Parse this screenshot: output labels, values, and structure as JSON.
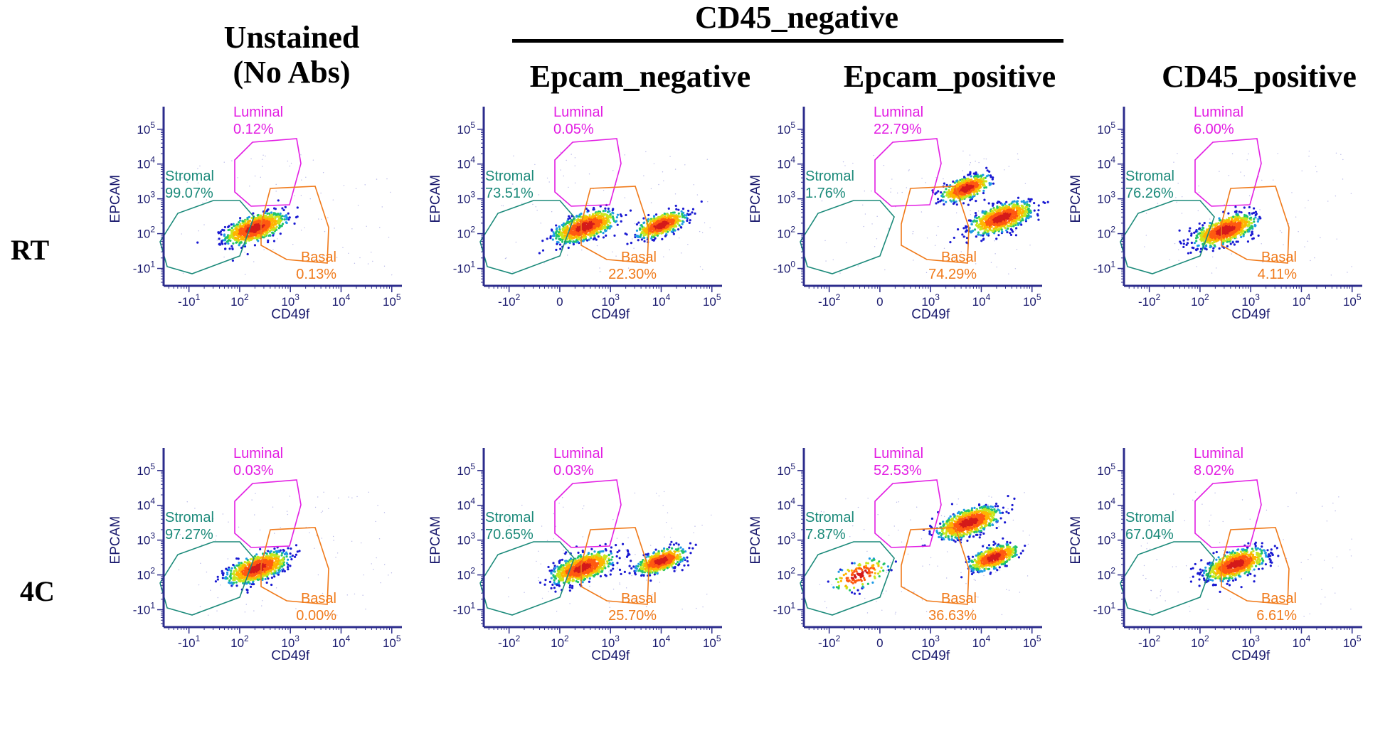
{
  "headers": {
    "unstained": [
      "Unstained",
      "(No Abs)"
    ],
    "group": "CD45_negative",
    "epcam_negative": "Epcam_negative",
    "epcam_positive": "Epcam_positive",
    "cd45_positive": "CD45_positive"
  },
  "rows": [
    "RT",
    "4C"
  ],
  "colors": {
    "stromal": "#1b8a7a",
    "luminal": "#e31ee3",
    "basal": "#f07a1a",
    "axis": "#2c2c8c"
  },
  "chart_data": [
    {
      "type": "scatter",
      "row": "RT",
      "column": "Unstained (No Abs)",
      "xlabel": "CD49f",
      "ylabel": "EPCAM",
      "xticks": [
        "-10^1",
        "10^2",
        "10^3",
        "10^4",
        "10^5"
      ],
      "yticks": [
        "10^5",
        "10^4",
        "10^3",
        "10^2",
        "-10^1"
      ],
      "gates": [
        {
          "name": "Luminal",
          "pct": "0.12%"
        },
        {
          "name": "Stromal",
          "pct": "99.07%"
        },
        {
          "name": "Basal",
          "pct": "0.13%"
        }
      ],
      "clusters": [
        {
          "x": 2.3,
          "y": 2.15,
          "density": "high"
        }
      ]
    },
    {
      "type": "scatter",
      "row": "RT",
      "column": "Epcam_negative",
      "xlabel": "CD49f",
      "ylabel": "EPCAM",
      "xticks": [
        "-10^2",
        "0",
        "10^3",
        "10^4",
        "10^5"
      ],
      "yticks": [
        "10^5",
        "10^4",
        "10^3",
        "10^2",
        "-10^1"
      ],
      "gates": [
        {
          "name": "Luminal",
          "pct": "0.05%"
        },
        {
          "name": "Stromal",
          "pct": "73.51%"
        },
        {
          "name": "Basal",
          "pct": "22.30%"
        }
      ],
      "clusters": [
        {
          "x": 2.5,
          "y": 2.2,
          "density": "high"
        },
        {
          "x": 4.0,
          "y": 2.25,
          "density": "medium"
        }
      ]
    },
    {
      "type": "scatter",
      "row": "RT",
      "column": "Epcam_positive",
      "xlabel": "CD49f",
      "ylabel": "EPCAM",
      "xticks": [
        "-10^2",
        "0",
        "10^3",
        "10^4",
        "10^5"
      ],
      "yticks": [
        "10^5",
        "10^4",
        "10^3",
        "10^2",
        "-10^0"
      ],
      "gates": [
        {
          "name": "Luminal",
          "pct": "22.79%"
        },
        {
          "name": "Stromal",
          "pct": "1.76%"
        },
        {
          "name": "Basal",
          "pct": "74.29%"
        }
      ],
      "clusters": [
        {
          "x": 3.7,
          "y": 3.3,
          "density": "medium"
        },
        {
          "x": 4.4,
          "y": 2.45,
          "density": "high"
        }
      ]
    },
    {
      "type": "scatter",
      "row": "RT",
      "column": "CD45_positive",
      "xlabel": "CD49f",
      "ylabel": "EPCAM",
      "xticks": [
        "-10^2",
        "10^2",
        "10^3",
        "10^4",
        "10^5"
      ],
      "yticks": [
        "10^5",
        "10^4",
        "10^3",
        "10^2",
        "-10^1"
      ],
      "gates": [
        {
          "name": "Luminal",
          "pct": "6.00%"
        },
        {
          "name": "Stromal",
          "pct": "76.26%"
        },
        {
          "name": "Basal",
          "pct": "4.11%"
        }
      ],
      "clusters": [
        {
          "x": 2.5,
          "y": 2.1,
          "density": "high"
        }
      ]
    },
    {
      "type": "scatter",
      "row": "4C",
      "column": "Unstained (No Abs)",
      "xlabel": "CD49f",
      "ylabel": "EPCAM",
      "xticks": [
        "-10^1",
        "10^2",
        "10^3",
        "10^4",
        "10^5"
      ],
      "yticks": [
        "10^5",
        "10^4",
        "10^3",
        "10^2",
        "-10^1"
      ],
      "gates": [
        {
          "name": "Luminal",
          "pct": "0.03%"
        },
        {
          "name": "Stromal",
          "pct": "97.27%"
        },
        {
          "name": "Basal",
          "pct": "0.00%"
        }
      ],
      "clusters": [
        {
          "x": 2.35,
          "y": 2.2,
          "density": "high"
        }
      ]
    },
    {
      "type": "scatter",
      "row": "4C",
      "column": "Epcam_negative",
      "xlabel": "CD49f",
      "ylabel": "EPCAM",
      "xticks": [
        "-10^2",
        "10^2",
        "10^3",
        "10^4",
        "10^5"
      ],
      "yticks": [
        "10^5",
        "10^4",
        "10^3",
        "10^2",
        "-10^1"
      ],
      "gates": [
        {
          "name": "Luminal",
          "pct": "0.03%"
        },
        {
          "name": "Stromal",
          "pct": "70.65%"
        },
        {
          "name": "Basal",
          "pct": "25.70%"
        }
      ],
      "clusters": [
        {
          "x": 2.45,
          "y": 2.2,
          "density": "high"
        },
        {
          "x": 4.0,
          "y": 2.4,
          "density": "medium"
        }
      ]
    },
    {
      "type": "scatter",
      "row": "4C",
      "column": "Epcam_positive",
      "xlabel": "CD49f",
      "ylabel": "EPCAM",
      "xticks": [
        "-10^2",
        "0",
        "10^3",
        "10^4",
        "10^5"
      ],
      "yticks": [
        "10^5",
        "10^4",
        "10^3",
        "10^2",
        "-10^1"
      ],
      "gates": [
        {
          "name": "Luminal",
          "pct": "52.53%"
        },
        {
          "name": "Stromal",
          "pct": "7.87%"
        },
        {
          "name": "Basal",
          "pct": "36.63%"
        }
      ],
      "clusters": [
        {
          "x": 3.75,
          "y": 3.5,
          "density": "high"
        },
        {
          "x": 4.25,
          "y": 2.5,
          "density": "medium"
        },
        {
          "x": 1.6,
          "y": 2.0,
          "density": "low"
        }
      ]
    },
    {
      "type": "scatter",
      "row": "4C",
      "column": "CD45_positive",
      "xlabel": "CD49f",
      "ylabel": "EPCAM",
      "xticks": [
        "-10^2",
        "10^2",
        "10^3",
        "10^4",
        "10^5"
      ],
      "yticks": [
        "10^5",
        "10^4",
        "10^3",
        "10^2",
        "-10^1"
      ],
      "gates": [
        {
          "name": "Luminal",
          "pct": "8.02%"
        },
        {
          "name": "Stromal",
          "pct": "67.04%"
        },
        {
          "name": "Basal",
          "pct": "6.61%"
        }
      ],
      "clusters": [
        {
          "x": 2.7,
          "y": 2.3,
          "density": "high"
        }
      ]
    }
  ]
}
